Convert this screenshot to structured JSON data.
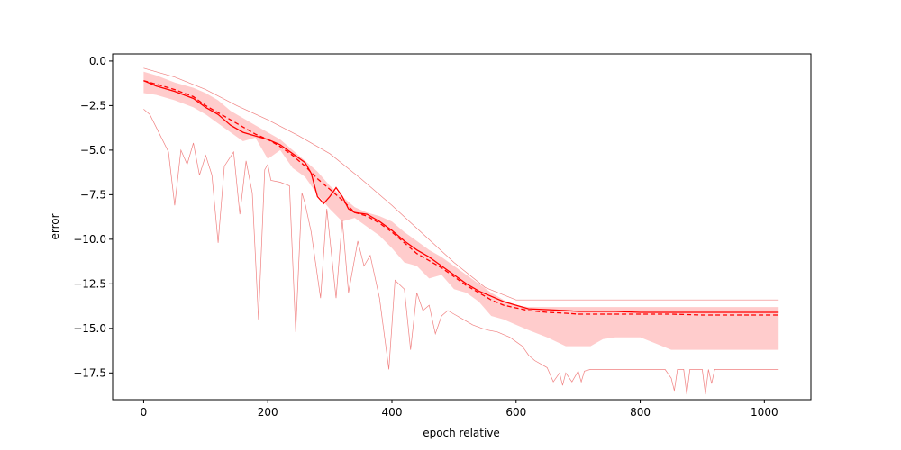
{
  "chart_data": {
    "type": "line",
    "title": "",
    "xlabel": "epoch relative",
    "ylabel": "error",
    "xlim": [
      -50,
      1075
    ],
    "ylim": [
      -19.0,
      0.4
    ],
    "xticks": [
      0,
      200,
      400,
      600,
      800,
      1000
    ],
    "yticks": [
      0.0,
      -2.5,
      -5.0,
      -7.5,
      -10.0,
      -12.5,
      -15.0,
      -17.5
    ],
    "xtick_labels": [
      "0",
      "200",
      "400",
      "600",
      "800",
      "1000"
    ],
    "ytick_labels": [
      "0.0",
      "−2.5",
      "−5.0",
      "−7.5",
      "−10.0",
      "−12.5",
      "−15.0",
      "−17.5"
    ],
    "grid": false,
    "colors": {
      "line": "#ff0000",
      "band": "#ffcccc",
      "thin": "#f08080"
    },
    "band": {
      "x": [
        0,
        20,
        50,
        80,
        100,
        120,
        140,
        160,
        180,
        200,
        220,
        240,
        260,
        280,
        300,
        320,
        340,
        360,
        380,
        400,
        420,
        440,
        460,
        480,
        500,
        520,
        540,
        560,
        580,
        600,
        620,
        650,
        680,
        700,
        720,
        740,
        760,
        800,
        850,
        900,
        1000,
        1023
      ],
      "upper": [
        -0.6,
        -0.8,
        -1.2,
        -1.5,
        -1.8,
        -2.2,
        -2.8,
        -3.2,
        -3.6,
        -4.0,
        -4.4,
        -5.0,
        -5.6,
        -6.2,
        -7.0,
        -7.6,
        -8.2,
        -8.5,
        -8.7,
        -9.0,
        -9.6,
        -10.1,
        -10.6,
        -11.0,
        -11.5,
        -12.0,
        -12.5,
        -13.0,
        -13.4,
        -13.7,
        -13.8,
        -13.8,
        -13.8,
        -13.8,
        -13.8,
        -13.8,
        -13.8,
        -13.8,
        -13.8,
        -13.8,
        -13.8,
        -13.8
      ],
      "lower": [
        -1.8,
        -1.9,
        -2.2,
        -2.6,
        -3.0,
        -3.5,
        -4.0,
        -4.5,
        -4.3,
        -5.5,
        -5.0,
        -6.0,
        -6.5,
        -7.5,
        -8.3,
        -9.0,
        -8.8,
        -9.3,
        -9.8,
        -10.5,
        -11.3,
        -11.5,
        -12.2,
        -12.0,
        -12.8,
        -13.0,
        -13.5,
        -14.3,
        -14.5,
        -14.8,
        -15.1,
        -15.5,
        -16.0,
        -16.0,
        -16.0,
        -15.6,
        -15.5,
        -15.5,
        -16.2,
        -16.2,
        -16.2,
        -16.2
      ]
    },
    "series": [
      {
        "style": "solid",
        "x": [
          0,
          20,
          50,
          80,
          100,
          120,
          140,
          160,
          180,
          200,
          220,
          240,
          260,
          270,
          280,
          290,
          300,
          310,
          320,
          330,
          340,
          360,
          380,
          400,
          420,
          440,
          460,
          480,
          500,
          520,
          540,
          560,
          580,
          600,
          620,
          650,
          680,
          700,
          720,
          740,
          760,
          800,
          850,
          900,
          1000,
          1023
        ],
        "y": [
          -1.1,
          -1.4,
          -1.7,
          -2.1,
          -2.6,
          -3.0,
          -3.6,
          -4.0,
          -4.2,
          -4.4,
          -4.7,
          -5.2,
          -5.7,
          -6.3,
          -7.6,
          -8.0,
          -7.6,
          -7.1,
          -7.6,
          -8.3,
          -8.5,
          -8.6,
          -9.0,
          -9.5,
          -10.1,
          -10.6,
          -11.0,
          -11.5,
          -12.0,
          -12.5,
          -12.9,
          -13.2,
          -13.5,
          -13.7,
          -13.9,
          -13.95,
          -14.0,
          -14.05,
          -14.05,
          -14.05,
          -14.05,
          -14.1,
          -14.1,
          -14.1,
          -14.1,
          -14.1
        ]
      },
      {
        "style": "dashed",
        "x": [
          0,
          20,
          50,
          80,
          100,
          120,
          140,
          160,
          180,
          200,
          220,
          240,
          260,
          280,
          300,
          320,
          340,
          360,
          380,
          400,
          420,
          440,
          460,
          480,
          500,
          520,
          540,
          560,
          580,
          600,
          620,
          650,
          680,
          700,
          720,
          740,
          760,
          800,
          850,
          900,
          1000,
          1023
        ],
        "y": [
          -1.1,
          -1.3,
          -1.6,
          -2.0,
          -2.5,
          -2.9,
          -3.3,
          -3.7,
          -4.1,
          -4.4,
          -4.8,
          -5.3,
          -5.9,
          -6.6,
          -7.2,
          -7.8,
          -8.5,
          -8.7,
          -9.1,
          -9.6,
          -10.2,
          -10.8,
          -11.2,
          -11.6,
          -12.1,
          -12.6,
          -13.0,
          -13.4,
          -13.7,
          -13.85,
          -14.0,
          -14.1,
          -14.15,
          -14.2,
          -14.2,
          -14.2,
          -14.2,
          -14.2,
          -14.2,
          -14.25,
          -14.25,
          -14.25
        ]
      }
    ],
    "thin_upper": {
      "x": [
        0,
        50,
        100,
        150,
        200,
        250,
        300,
        350,
        400,
        450,
        500,
        550,
        600,
        650,
        700,
        720,
        730,
        740,
        800,
        850,
        900,
        1000,
        1023
      ],
      "y": [
        -0.4,
        -0.9,
        -1.6,
        -2.5,
        -3.3,
        -4.2,
        -5.2,
        -6.6,
        -8.1,
        -9.7,
        -11.3,
        -12.7,
        -13.4,
        -13.4,
        -13.4,
        -13.4,
        -13.4,
        -13.4,
        -13.4,
        -13.4,
        -13.4,
        -13.4,
        -13.4
      ]
    },
    "thin_lower": {
      "x": [
        0,
        10,
        20,
        40,
        50,
        60,
        70,
        80,
        90,
        100,
        110,
        120,
        130,
        145,
        155,
        165,
        175,
        185,
        195,
        200,
        205,
        220,
        235,
        245,
        255,
        260,
        270,
        285,
        295,
        310,
        320,
        330,
        345,
        355,
        365,
        380,
        395,
        405,
        420,
        430,
        440,
        450,
        460,
        470,
        480,
        490,
        500,
        510,
        520,
        530,
        545,
        555,
        570,
        590,
        610,
        620,
        630,
        650,
        660,
        670,
        675,
        680,
        690,
        700,
        705,
        710,
        720,
        740,
        800,
        840,
        850,
        855,
        860,
        870,
        875,
        880,
        885,
        900,
        905,
        910,
        915,
        920,
        1000,
        1023
      ],
      "y": [
        -2.7,
        -3.0,
        -3.7,
        -5.1,
        -8.1,
        -5.0,
        -5.8,
        -4.6,
        -6.4,
        -5.3,
        -6.4,
        -10.2,
        -5.9,
        -5.1,
        -8.6,
        -5.6,
        -7.4,
        -14.5,
        -6.1,
        -5.8,
        -6.7,
        -6.8,
        -7.0,
        -15.2,
        -7.4,
        -8.0,
        -9.6,
        -13.3,
        -8.3,
        -13.3,
        -8.9,
        -13.0,
        -10.1,
        -11.5,
        -10.9,
        -13.3,
        -17.3,
        -12.3,
        -12.8,
        -16.2,
        -13.0,
        -14.0,
        -13.7,
        -15.3,
        -14.3,
        -14.0,
        -14.2,
        -14.4,
        -14.6,
        -14.8,
        -15.0,
        -15.1,
        -15.2,
        -15.5,
        -16.0,
        -16.5,
        -16.8,
        -17.2,
        -18.0,
        -17.5,
        -18.2,
        -17.5,
        -18.0,
        -17.4,
        -18.0,
        -17.4,
        -17.3,
        -17.3,
        -17.3,
        -17.3,
        -17.8,
        -18.5,
        -17.3,
        -17.3,
        -18.7,
        -17.3,
        -17.3,
        -17.3,
        -18.7,
        -17.3,
        -18.1,
        -17.3,
        -17.3,
        -17.3
      ]
    }
  }
}
